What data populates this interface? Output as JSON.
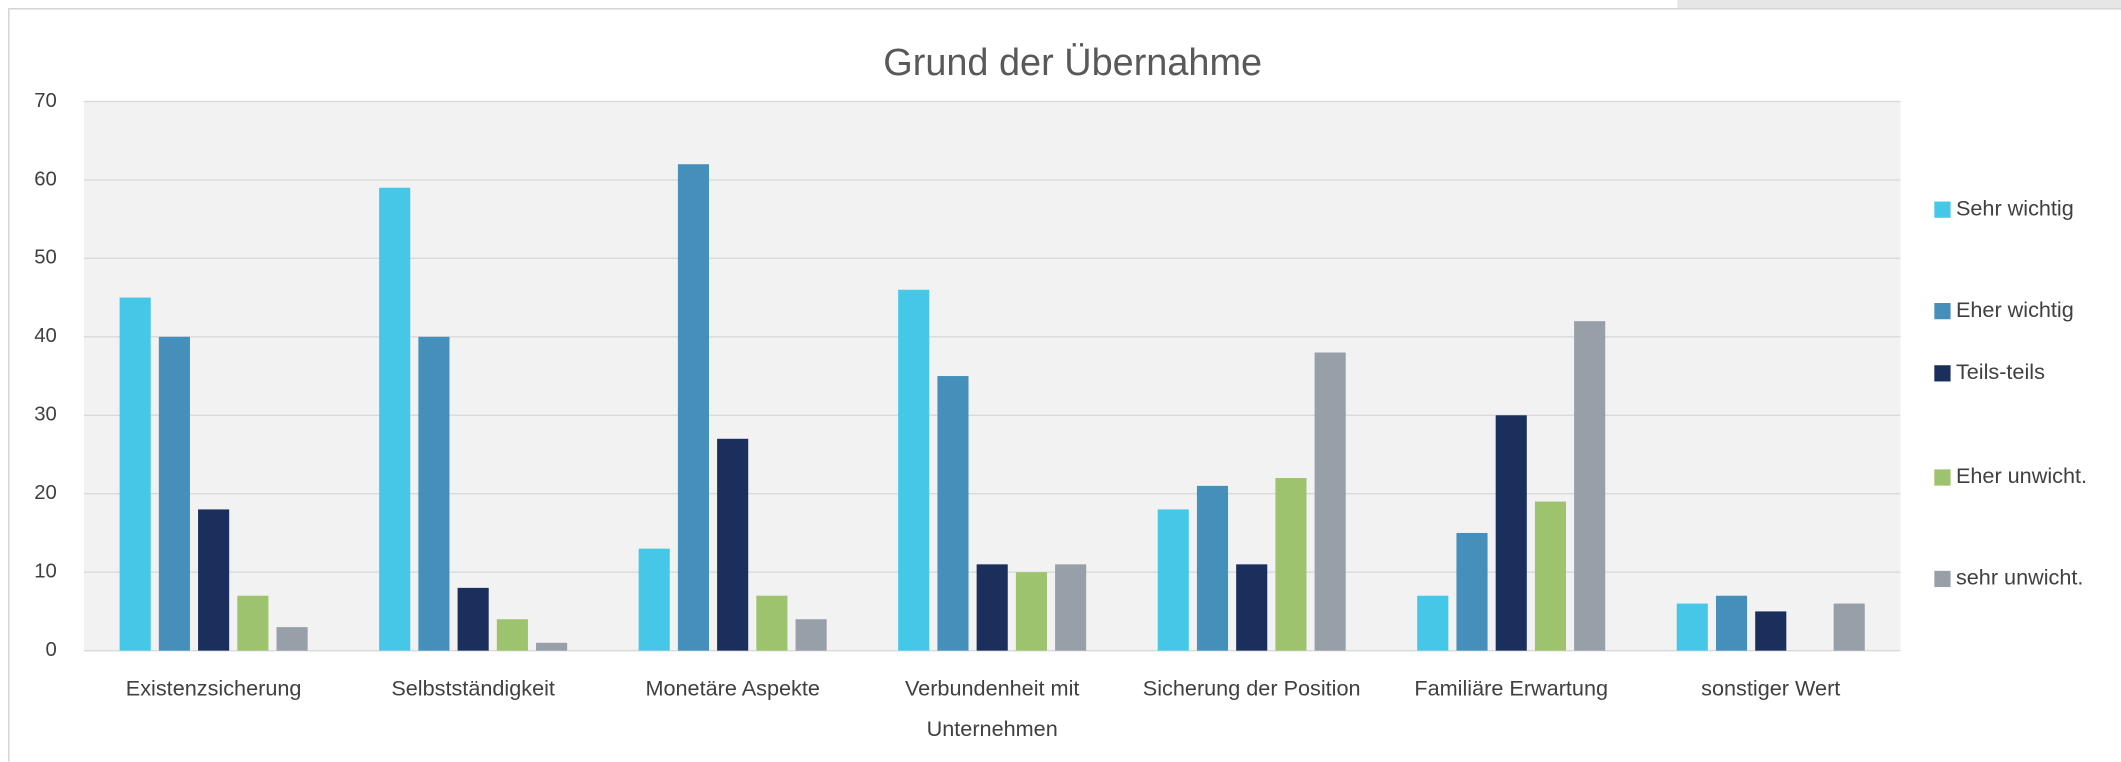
{
  "chart_data": {
    "type": "bar",
    "title": "Grund der Übernahme",
    "categories": [
      "Existenzsicherung",
      "Selbstständigkeit",
      "Monetäre Aspekte",
      "Verbundenheit mit Unternehmen",
      "Sicherung der Position",
      "Familiäre Erwartung",
      "sonstiger Wert"
    ],
    "series": [
      {
        "name": "Sehr wichtig",
        "color": "#45c8e8",
        "values": [
          45,
          59,
          13,
          46,
          18,
          7,
          6
        ]
      },
      {
        "name": "Eher wichtig",
        "color": "#4590bb",
        "values": [
          40,
          40,
          62,
          35,
          21,
          15,
          7
        ]
      },
      {
        "name": "Teils-teils",
        "color": "#1b2f5c",
        "values": [
          18,
          8,
          27,
          11,
          11,
          30,
          5
        ]
      },
      {
        "name": "Eher unwicht.",
        "color": "#9dc36f",
        "values": [
          7,
          4,
          7,
          10,
          22,
          19,
          null
        ]
      },
      {
        "name": "sehr unwicht.",
        "color": "#979fa8",
        "values": [
          3,
          1,
          4,
          11,
          38,
          42,
          6
        ]
      }
    ],
    "ylim": [
      0,
      70
    ],
    "yticks": [
      0,
      10,
      20,
      30,
      40,
      50,
      60,
      70
    ],
    "grid": true,
    "legend": "right"
  }
}
